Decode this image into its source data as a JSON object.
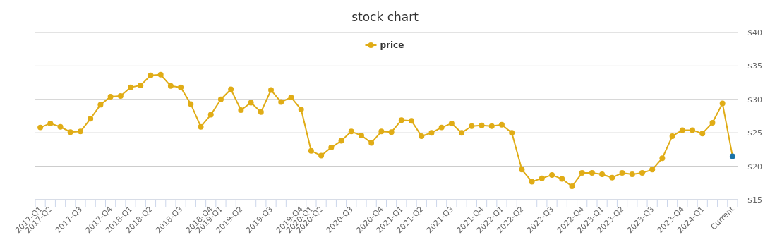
{
  "chart_data": {
    "type": "line",
    "title": "stock chart",
    "categories": [
      "2017-Q1",
      "2017-Q2",
      null,
      null,
      "2017-Q3",
      null,
      null,
      "2017-Q4",
      null,
      "2018-Q1",
      null,
      "2018-Q2",
      null,
      null,
      "2018-Q3",
      null,
      null,
      "2018-Q4",
      "2019-Q1",
      null,
      "2019-Q2",
      null,
      null,
      "2019-Q3",
      null,
      null,
      "2019-Q4",
      "2020-Q1",
      "2020-Q2",
      null,
      null,
      "2020-Q3",
      null,
      null,
      "2020-Q4",
      null,
      "2021-Q1",
      null,
      "2021-Q2",
      null,
      null,
      "2021-Q3",
      null,
      null,
      "2021-Q4",
      null,
      "2022-Q1",
      null,
      "2022-Q2",
      null,
      null,
      "2022-Q3",
      null,
      null,
      "2022-Q4",
      null,
      "2023-Q1",
      null,
      "2023-Q2",
      null,
      null,
      "2023-Q3",
      null,
      null,
      "2023-Q4",
      null,
      "2024-Q1",
      null,
      null,
      "Current"
    ],
    "series": [
      {
        "name": "price",
        "color": "#e0ac16",
        "colors": [
          "#e0ac16",
          "#e0ac16",
          "#e0ac16",
          "#e0ac16",
          "#e0ac16",
          "#e0ac16",
          "#e0ac16",
          "#e0ac16",
          "#e0ac16",
          "#e0ac16",
          "#e0ac16",
          "#e0ac16",
          "#e0ac16",
          "#e0ac16",
          "#e0ac16",
          "#e0ac16",
          "#e0ac16",
          "#e0ac16",
          "#e0ac16",
          "#e0ac16",
          "#e0ac16",
          "#e0ac16",
          "#e0ac16",
          "#e0ac16",
          "#e0ac16",
          "#e0ac16",
          "#e0ac16",
          "#e0ac16",
          "#e0ac16",
          "#e0ac16",
          "#e0ac16",
          "#e0ac16",
          "#e0ac16",
          "#e0ac16",
          "#e0ac16",
          "#e0ac16",
          "#e0ac16",
          "#e0ac16",
          "#e0ac16",
          "#e0ac16",
          "#e0ac16",
          "#e0ac16",
          "#e0ac16",
          "#e0ac16",
          "#e0ac16",
          "#e0ac16",
          "#e0ac16",
          "#e0ac16",
          "#e0ac16",
          "#e0ac16",
          "#e0ac16",
          "#e0ac16",
          "#e0ac16",
          "#e0ac16",
          "#e0ac16",
          "#e0ac16",
          "#e0ac16",
          "#e0ac16",
          "#e0ac16",
          "#e0ac16",
          "#e0ac16",
          "#e0ac16",
          "#e0ac16",
          "#e0ac16",
          "#e0ac16",
          "#e0ac16",
          "#e0ac16",
          "#e0ac16",
          "#e0ac16",
          "#1a73a8"
        ],
        "values": [
          25.8,
          26.4,
          25.9,
          25.1,
          25.2,
          27.1,
          29.2,
          30.4,
          30.5,
          31.8,
          32.1,
          33.6,
          33.7,
          32.0,
          31.8,
          29.3,
          25.9,
          27.7,
          30.0,
          31.5,
          28.4,
          29.5,
          28.1,
          31.4,
          29.6,
          30.3,
          28.5,
          22.3,
          21.6,
          22.8,
          23.8,
          25.2,
          24.6,
          23.5,
          25.2,
          25.1,
          26.9,
          26.8,
          24.5,
          25.0,
          25.8,
          26.4,
          25.0,
          26.0,
          26.1,
          26.0,
          26.2,
          25.0,
          19.5,
          17.7,
          18.2,
          18.7,
          18.1,
          17.0,
          19.0,
          19.0,
          18.8,
          18.3,
          19.0,
          18.8,
          19.0,
          19.5,
          21.2,
          24.5,
          25.4,
          25.4,
          24.9,
          26.5,
          29.4,
          21.5
        ]
      }
    ],
    "ylim": [
      15,
      40
    ],
    "yticks": [
      {
        "value": 15,
        "label": "$15"
      },
      {
        "value": 20,
        "label": "$20"
      },
      {
        "value": 25,
        "label": "$25"
      },
      {
        "value": 30,
        "label": "$30"
      },
      {
        "value": 35,
        "label": "$35"
      },
      {
        "value": 40,
        "label": "$40"
      }
    ],
    "grid": "y",
    "legend": "top",
    "marker": "circle",
    "line_style": "solid"
  }
}
